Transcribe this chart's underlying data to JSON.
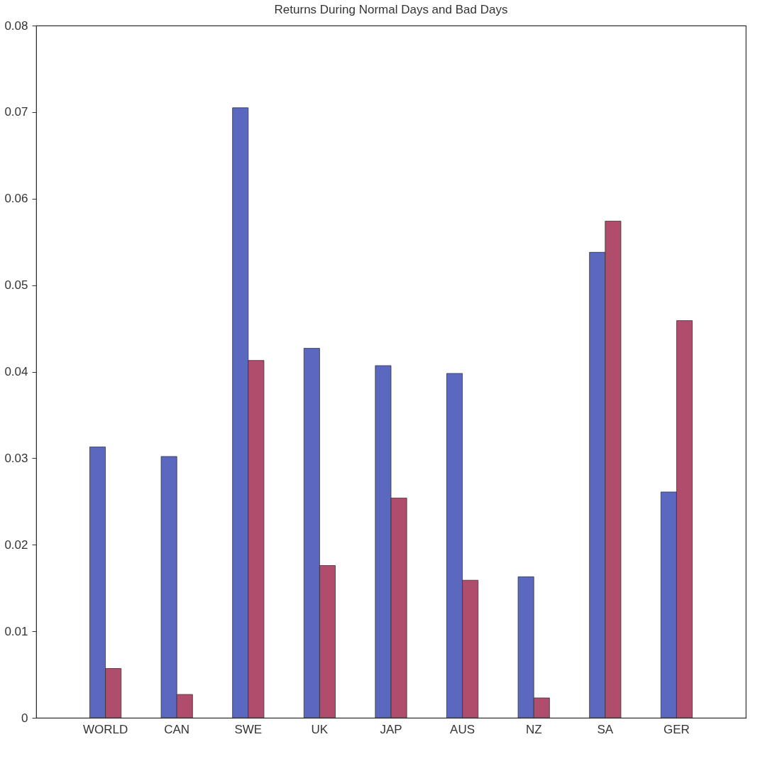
{
  "chart_data": {
    "type": "bar",
    "title": "Returns During Normal Days and Bad Days",
    "categories": [
      "WORLD",
      "CAN",
      "SWE",
      "UK",
      "JAP",
      "AUS",
      "NZ",
      "SA",
      "GER"
    ],
    "series": [
      {
        "color": "#5a68c0",
        "values": [
          0.0313,
          0.0302,
          0.0705,
          0.0427,
          0.0407,
          0.0398,
          0.0163,
          0.0538,
          0.0261
        ]
      },
      {
        "color": "#b04c6c",
        "values": [
          0.0057,
          0.0027,
          0.0413,
          0.0176,
          0.0254,
          0.0159,
          0.0023,
          0.0574,
          0.0459
        ]
      }
    ],
    "ylim": [
      0,
      0.08
    ],
    "yticks": [
      0,
      0.01,
      0.02,
      0.03,
      0.04,
      0.05,
      0.06,
      0.07,
      0.08
    ],
    "grid": false,
    "legend": false
  }
}
